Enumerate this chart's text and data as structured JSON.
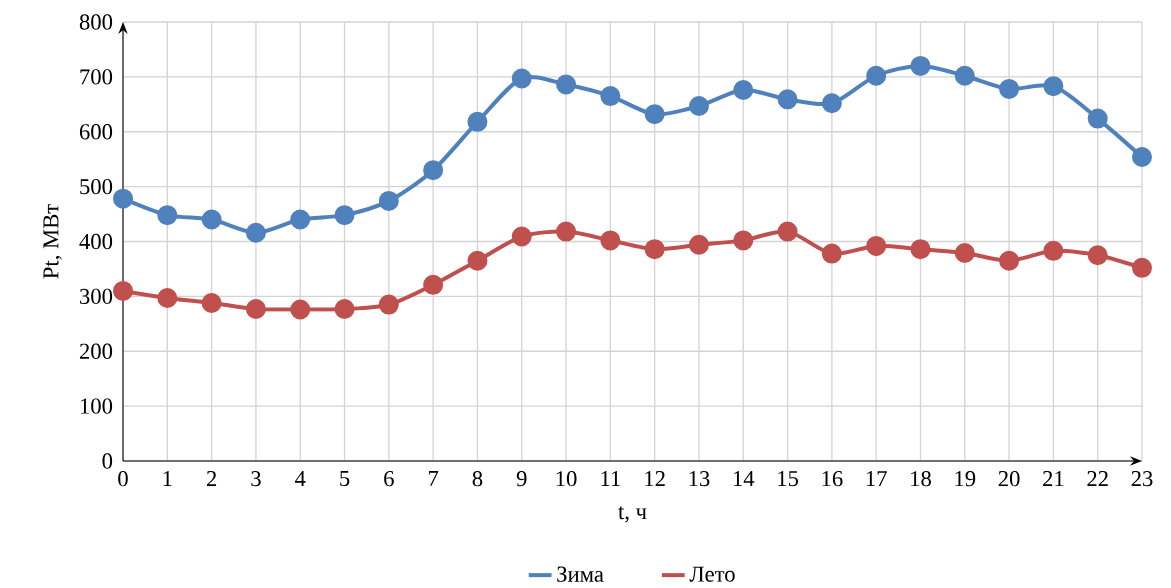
{
  "chart_data": {
    "type": "line",
    "xlabel": "t, ч",
    "ylabel": "Pt, МВт",
    "x": [
      0,
      1,
      2,
      3,
      4,
      5,
      6,
      7,
      8,
      9,
      10,
      11,
      12,
      13,
      14,
      15,
      16,
      17,
      18,
      19,
      20,
      21,
      22,
      23
    ],
    "series": [
      {
        "name": "Зима",
        "color": "#4f81bd",
        "values": [
          478,
          448,
          440,
          416,
          440,
          448,
          474,
          530,
          618,
          697,
          686,
          665,
          632,
          647,
          676,
          659,
          652,
          702,
          720,
          702,
          678,
          683,
          624,
          554
        ]
      },
      {
        "name": "Лето",
        "color": "#c0504d",
        "values": [
          310,
          297,
          288,
          277,
          276,
          277,
          285,
          321,
          365,
          409,
          418,
          402,
          386,
          394,
          402,
          418,
          378,
          392,
          386,
          379,
          365,
          383,
          375,
          352
        ]
      }
    ],
    "xlim": [
      0,
      23
    ],
    "ylim": [
      0,
      800
    ],
    "xticks": [
      0,
      1,
      2,
      3,
      4,
      5,
      6,
      7,
      8,
      9,
      10,
      11,
      12,
      13,
      14,
      15,
      16,
      17,
      18,
      19,
      20,
      21,
      22,
      23
    ],
    "yticks": [
      0,
      100,
      200,
      300,
      400,
      500,
      600,
      700,
      800
    ],
    "grid": true,
    "legend": "bottom",
    "marker": "circle",
    "line_style": "solid"
  }
}
